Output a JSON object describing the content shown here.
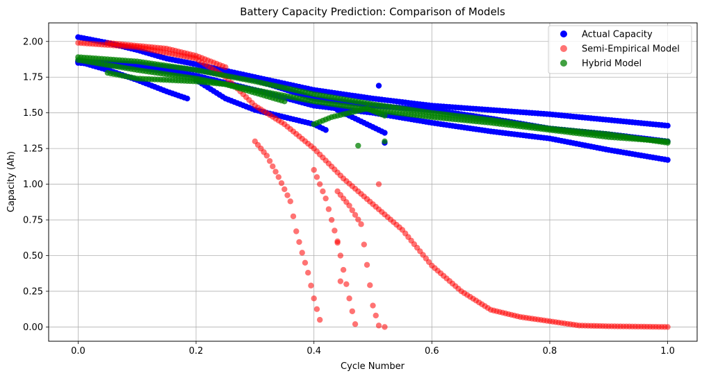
{
  "chart_data": {
    "type": "scatter",
    "title": "Battery Capacity Prediction: Comparison of Models",
    "xlabel": "Cycle Number",
    "ylabel": "Capacity (Ah)",
    "xlim": [
      -0.05,
      1.05
    ],
    "ylim": [
      -0.1,
      2.13
    ],
    "xticks": [
      0.0,
      0.2,
      0.4,
      0.6,
      0.8,
      1.0
    ],
    "xtick_labels": [
      "0.0",
      "0.2",
      "0.4",
      "0.6",
      "0.8",
      "1.0"
    ],
    "yticks": [
      0.0,
      0.25,
      0.5,
      0.75,
      1.0,
      1.25,
      1.5,
      1.75,
      2.0
    ],
    "ytick_labels": [
      "0.00",
      "0.25",
      "0.50",
      "0.75",
      "1.00",
      "1.25",
      "1.50",
      "1.75",
      "2.00"
    ],
    "grid": true,
    "legend_position": "top-right",
    "series": [
      {
        "name": "Actual Capacity",
        "color": "#0000ff",
        "opacity": 1.0,
        "curves": [
          {
            "x": [
              0.0,
              0.05,
              0.1,
              0.15,
              0.2,
              0.3,
              0.4,
              0.5,
              0.6,
              0.7,
              0.8,
              0.9,
              1.0
            ],
            "y": [
              2.03,
              1.99,
              1.94,
              1.88,
              1.84,
              1.75,
              1.66,
              1.6,
              1.55,
              1.52,
              1.49,
              1.45,
              1.41
            ]
          },
          {
            "x": [
              0.0,
              0.1,
              0.2,
              0.3,
              0.4,
              0.5,
              0.6,
              0.7,
              0.8,
              0.9,
              1.0
            ],
            "y": [
              1.86,
              1.84,
              1.8,
              1.73,
              1.6,
              1.55,
              1.52,
              1.46,
              1.39,
              1.35,
              1.3
            ]
          },
          {
            "x": [
              0.0,
              0.1,
              0.2,
              0.3,
              0.4,
              0.5,
              0.6,
              0.7,
              0.8,
              0.9,
              1.0
            ],
            "y": [
              1.85,
              1.82,
              1.76,
              1.66,
              1.55,
              1.5,
              1.43,
              1.37,
              1.32,
              1.24,
              1.17
            ]
          },
          {
            "x": [
              0.0,
              0.05,
              0.1,
              0.15,
              0.185
            ],
            "y": [
              1.86,
              1.8,
              1.73,
              1.65,
              1.6
            ]
          },
          {
            "x": [
              0.2,
              0.25,
              0.3,
              0.35,
              0.4,
              0.42
            ],
            "y": [
              1.73,
              1.6,
              1.52,
              1.47,
              1.42,
              1.38
            ]
          },
          {
            "x": [
              0.44,
              0.47,
              0.5,
              0.52
            ],
            "y": [
              1.52,
              1.46,
              1.4,
              1.36
            ]
          }
        ]
      },
      {
        "name": "Semi-Empirical Model",
        "color": "#ff0000",
        "opacity": 0.55,
        "curves": [
          {
            "x": [
              0.0,
              0.1,
              0.2,
              0.25,
              0.3,
              0.35,
              0.4,
              0.45,
              0.5,
              0.55,
              0.6,
              0.65,
              0.7,
              0.75,
              0.8,
              0.85,
              0.9,
              1.0
            ],
            "y": [
              1.99,
              1.96,
              1.88,
              1.75,
              1.55,
              1.42,
              1.25,
              1.04,
              0.86,
              0.68,
              0.43,
              0.25,
              0.12,
              0.07,
              0.04,
              0.01,
              0.005,
              0.0
            ]
          },
          {
            "x": [
              0.3,
              0.32,
              0.34,
              0.36,
              0.37,
              0.38,
              0.39,
              0.4,
              0.41
            ],
            "y": [
              1.3,
              1.2,
              1.05,
              0.88,
              0.67,
              0.52,
              0.38,
              0.2,
              0.05
            ]
          },
          {
            "x": [
              0.4,
              0.42,
              0.44,
              0.46,
              0.47
            ],
            "y": [
              1.1,
              0.9,
              0.6,
              0.2,
              0.02
            ]
          },
          {
            "x": [
              0.44,
              0.46,
              0.48,
              0.5,
              0.51
            ],
            "y": [
              0.95,
              0.85,
              0.72,
              0.15,
              0.01
            ]
          },
          {
            "x": [
              0.05,
              0.15,
              0.2,
              0.25
            ],
            "y": [
              1.99,
              1.95,
              1.9,
              1.82
            ]
          }
        ]
      },
      {
        "name": "Hybrid Model",
        "color": "#008000",
        "opacity": 0.75,
        "curves": [
          {
            "x": [
              0.0,
              0.1,
              0.2,
              0.3,
              0.4,
              0.5,
              0.6,
              0.7,
              0.8,
              0.9,
              1.0
            ],
            "y": [
              1.89,
              1.86,
              1.8,
              1.72,
              1.63,
              1.56,
              1.5,
              1.45,
              1.39,
              1.35,
              1.29
            ]
          },
          {
            "x": [
              0.0,
              0.1,
              0.2,
              0.3,
              0.4,
              0.5,
              0.6,
              0.7,
              0.8,
              0.9,
              1.0
            ],
            "y": [
              1.87,
              1.8,
              1.74,
              1.66,
              1.58,
              1.52,
              1.47,
              1.43,
              1.38,
              1.33,
              1.3
            ]
          },
          {
            "x": [
              0.05,
              0.1,
              0.15,
              0.2,
              0.25,
              0.3,
              0.35
            ],
            "y": [
              1.78,
              1.74,
              1.73,
              1.72,
              1.7,
              1.64,
              1.58
            ]
          },
          {
            "x": [
              0.4,
              0.43,
              0.46,
              0.49,
              0.52
            ],
            "y": [
              1.42,
              1.47,
              1.5,
              1.53,
              1.48
            ]
          }
        ]
      }
    ],
    "extra_points": [
      {
        "series": 0,
        "x": 0.51,
        "y": 1.69
      },
      {
        "series": 0,
        "x": 0.52,
        "y": 1.29
      },
      {
        "series": 2,
        "x": 0.475,
        "y": 1.27
      },
      {
        "series": 2,
        "x": 0.52,
        "y": 1.3
      },
      {
        "series": 1,
        "x": 0.51,
        "y": 1.0
      },
      {
        "series": 1,
        "x": 0.44,
        "y": 0.59
      },
      {
        "series": 1,
        "x": 0.445,
        "y": 0.32
      },
      {
        "series": 1,
        "x": 0.52,
        "y": 0.0
      }
    ]
  }
}
